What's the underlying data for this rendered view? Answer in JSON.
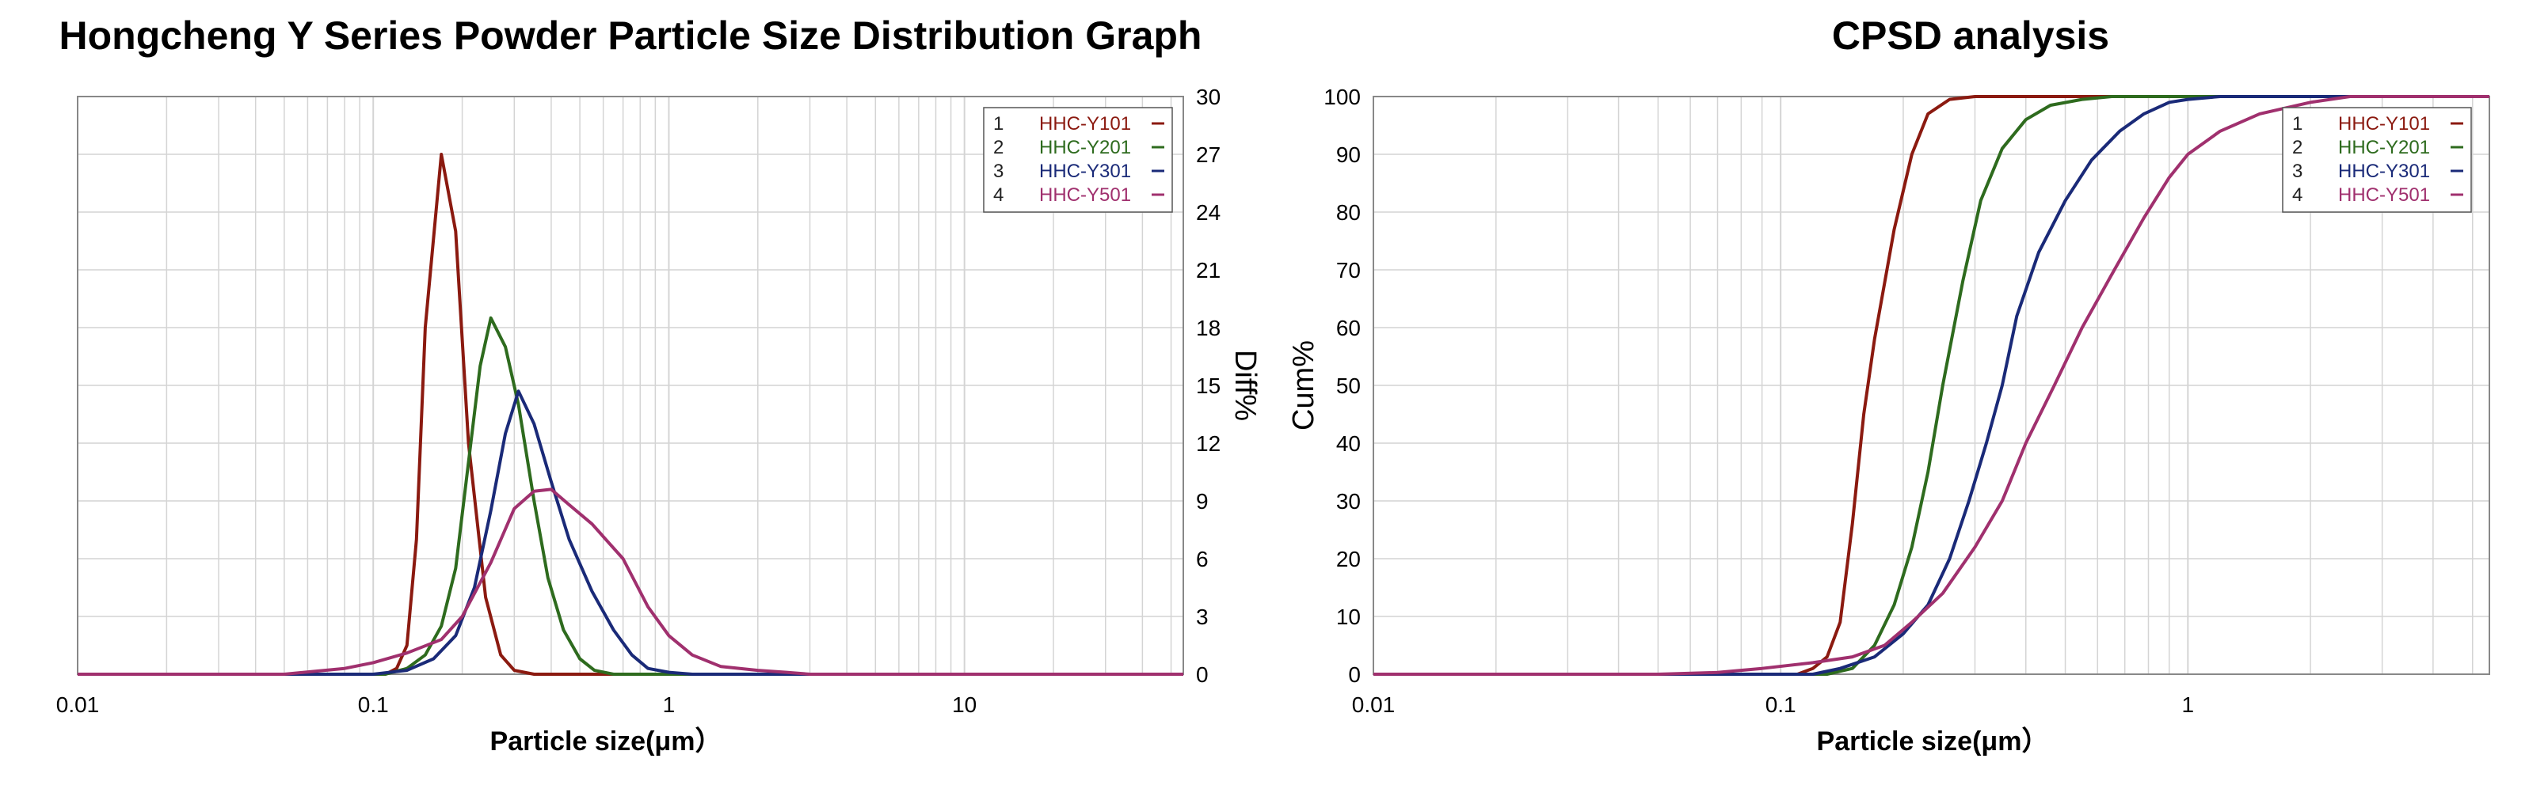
{
  "colors": {
    "HHC-Y101": "#8b1a10",
    "HHC-Y201": "#2e6b1e",
    "HHC-Y301": "#1a2a78",
    "HHC-Y501": "#a0306e",
    "grid": "#d4d4d4",
    "frame": "#888888"
  },
  "chart_data": [
    {
      "type": "line",
      "title": "Hongcheng Y Series Powder Particle Size Distribution Graph",
      "xlabel": "Particle size(μm）",
      "ylabel": "Diff%",
      "x_scale": "log",
      "xlim": [
        0.01,
        55
      ],
      "ylim": [
        0,
        30
      ],
      "x_ticks": [
        "0.01",
        "0.1",
        "1",
        "10"
      ],
      "y_ticks": [
        "0",
        "3",
        "6",
        "9",
        "12",
        "15",
        "18",
        "21",
        "24",
        "27",
        "30"
      ],
      "legend_position": "top-right",
      "legend": [
        {
          "index": "1",
          "name": "HHC-Y101"
        },
        {
          "index": "2",
          "name": "HHC-Y201"
        },
        {
          "index": "3",
          "name": "HHC-Y301"
        },
        {
          "index": "4",
          "name": "HHC-Y501"
        }
      ],
      "series": [
        {
          "name": "HHC-Y101",
          "points": [
            [
              0.01,
              0
            ],
            [
              0.11,
              0
            ],
            [
              0.12,
              0.3
            ],
            [
              0.13,
              1.5
            ],
            [
              0.14,
              7
            ],
            [
              0.15,
              18
            ],
            [
              0.17,
              27
            ],
            [
              0.19,
              23
            ],
            [
              0.21,
              12
            ],
            [
              0.24,
              4
            ],
            [
              0.27,
              1
            ],
            [
              0.3,
              0.2
            ],
            [
              0.35,
              0
            ],
            [
              55,
              0
            ]
          ]
        },
        {
          "name": "HHC-Y201",
          "points": [
            [
              0.01,
              0
            ],
            [
              0.11,
              0
            ],
            [
              0.13,
              0.3
            ],
            [
              0.15,
              1
            ],
            [
              0.17,
              2.5
            ],
            [
              0.19,
              5.5
            ],
            [
              0.21,
              11
            ],
            [
              0.23,
              16
            ],
            [
              0.25,
              18.5
            ],
            [
              0.28,
              17
            ],
            [
              0.31,
              14
            ],
            [
              0.35,
              9
            ],
            [
              0.39,
              5
            ],
            [
              0.44,
              2.3
            ],
            [
              0.5,
              0.8
            ],
            [
              0.56,
              0.2
            ],
            [
              0.65,
              0
            ],
            [
              55,
              0
            ]
          ]
        },
        {
          "name": "HHC-Y301",
          "points": [
            [
              0.01,
              0
            ],
            [
              0.1,
              0
            ],
            [
              0.13,
              0.2
            ],
            [
              0.16,
              0.8
            ],
            [
              0.19,
              2
            ],
            [
              0.22,
              4.5
            ],
            [
              0.25,
              8.5
            ],
            [
              0.28,
              12.5
            ],
            [
              0.31,
              14.7
            ],
            [
              0.35,
              13
            ],
            [
              0.4,
              10
            ],
            [
              0.46,
              7
            ],
            [
              0.55,
              4.3
            ],
            [
              0.65,
              2.3
            ],
            [
              0.75,
              1
            ],
            [
              0.85,
              0.3
            ],
            [
              1,
              0.1
            ],
            [
              1.2,
              0
            ],
            [
              55,
              0
            ]
          ]
        },
        {
          "name": "HHC-Y501",
          "points": [
            [
              0.01,
              0
            ],
            [
              0.05,
              0
            ],
            [
              0.08,
              0.3
            ],
            [
              0.1,
              0.6
            ],
            [
              0.13,
              1.1
            ],
            [
              0.17,
              1.8
            ],
            [
              0.2,
              3
            ],
            [
              0.25,
              5.8
            ],
            [
              0.3,
              8.6
            ],
            [
              0.35,
              9.5
            ],
            [
              0.4,
              9.6
            ],
            [
              0.46,
              8.8
            ],
            [
              0.55,
              7.8
            ],
            [
              0.7,
              6
            ],
            [
              0.85,
              3.5
            ],
            [
              1,
              2
            ],
            [
              1.2,
              1
            ],
            [
              1.5,
              0.4
            ],
            [
              2,
              0.2
            ],
            [
              2.5,
              0.1
            ],
            [
              3,
              0
            ],
            [
              55,
              0
            ]
          ]
        }
      ]
    },
    {
      "type": "line",
      "title": "CPSD analysis",
      "xlabel": "Particle size(μm）",
      "ylabel": "Cum%",
      "x_scale": "log",
      "xlim": [
        0.01,
        5.5
      ],
      "ylim": [
        0,
        100
      ],
      "x_ticks": [
        "0.01",
        "0.1",
        "1"
      ],
      "y_ticks": [
        "0",
        "10",
        "20",
        "30",
        "40",
        "50",
        "60",
        "70",
        "80",
        "90",
        "100"
      ],
      "legend_position": "top-right",
      "legend": [
        {
          "index": "1",
          "name": "HHC-Y101"
        },
        {
          "index": "2",
          "name": "HHC-Y201"
        },
        {
          "index": "3",
          "name": "HHC-Y301"
        },
        {
          "index": "4",
          "name": "HHC-Y501"
        }
      ],
      "series": [
        {
          "name": "HHC-Y101",
          "points": [
            [
              0.01,
              0
            ],
            [
              0.11,
              0
            ],
            [
              0.12,
              1
            ],
            [
              0.13,
              3
            ],
            [
              0.14,
              9
            ],
            [
              0.15,
              26
            ],
            [
              0.16,
              45
            ],
            [
              0.17,
              58
            ],
            [
              0.19,
              77
            ],
            [
              0.21,
              90
            ],
            [
              0.23,
              97
            ],
            [
              0.26,
              99.5
            ],
            [
              0.3,
              100
            ],
            [
              5.5,
              100
            ]
          ]
        },
        {
          "name": "HHC-Y201",
          "points": [
            [
              0.01,
              0
            ],
            [
              0.13,
              0
            ],
            [
              0.15,
              1
            ],
            [
              0.17,
              5
            ],
            [
              0.19,
              12
            ],
            [
              0.21,
              22
            ],
            [
              0.23,
              35
            ],
            [
              0.25,
              50
            ],
            [
              0.28,
              68
            ],
            [
              0.31,
              82
            ],
            [
              0.35,
              91
            ],
            [
              0.4,
              96
            ],
            [
              0.46,
              98.5
            ],
            [
              0.55,
              99.5
            ],
            [
              0.65,
              100
            ],
            [
              5.5,
              100
            ]
          ]
        },
        {
          "name": "HHC-Y301",
          "points": [
            [
              0.01,
              0
            ],
            [
              0.12,
              0
            ],
            [
              0.14,
              1
            ],
            [
              0.17,
              3
            ],
            [
              0.2,
              7
            ],
            [
              0.23,
              12
            ],
            [
              0.26,
              20
            ],
            [
              0.29,
              30
            ],
            [
              0.32,
              40
            ],
            [
              0.35,
              50
            ],
            [
              0.38,
              62
            ],
            [
              0.43,
              73
            ],
            [
              0.5,
              82
            ],
            [
              0.58,
              89
            ],
            [
              0.68,
              94
            ],
            [
              0.78,
              97
            ],
            [
              0.9,
              99
            ],
            [
              1,
              99.5
            ],
            [
              1.2,
              100
            ],
            [
              5.5,
              100
            ]
          ]
        },
        {
          "name": "HHC-Y501",
          "points": [
            [
              0.01,
              0
            ],
            [
              0.05,
              0
            ],
            [
              0.07,
              0.3
            ],
            [
              0.09,
              1
            ],
            [
              0.12,
              2
            ],
            [
              0.15,
              3
            ],
            [
              0.18,
              5
            ],
            [
              0.21,
              9
            ],
            [
              0.25,
              14
            ],
            [
              0.3,
              22
            ],
            [
              0.35,
              30
            ],
            [
              0.4,
              40
            ],
            [
              0.47,
              50
            ],
            [
              0.55,
              60
            ],
            [
              0.66,
              70
            ],
            [
              0.78,
              79
            ],
            [
              0.9,
              86
            ],
            [
              1,
              90
            ],
            [
              1.2,
              94
            ],
            [
              1.5,
              97
            ],
            [
              2,
              99
            ],
            [
              2.5,
              100
            ],
            [
              5.5,
              100
            ]
          ]
        }
      ]
    }
  ]
}
